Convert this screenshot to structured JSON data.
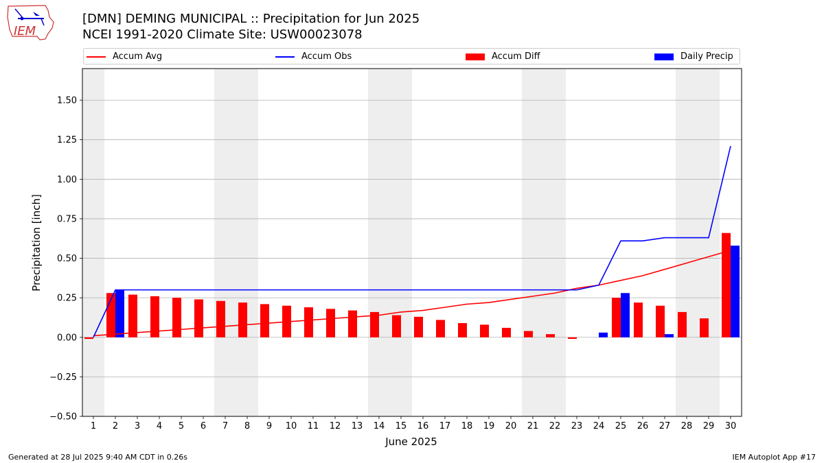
{
  "header": {
    "title_line1": "[DMN] DEMING MUNICIPAL :: Precipitation for Jun 2025",
    "title_line2": "NCEI 1991-2020 Climate Site: USW00023078"
  },
  "logo": {
    "text": "IEM"
  },
  "footer": {
    "left": "Generated at 28 Jul 2025 9:40 AM CDT in 0.26s",
    "right": "IEM Autoplot App #17"
  },
  "colors": {
    "avg": "#ff0000",
    "obs": "#0000ff",
    "diff": "#ff0000",
    "daily": "#0000ff",
    "weekend": "#eeeeee",
    "grid": "#b0b0b0"
  },
  "chart_data": {
    "type": "bar",
    "xlabel": "June 2025",
    "ylabel": "Precipitation [inch]",
    "ylim": [
      -0.5,
      1.7
    ],
    "yticks": [
      -0.5,
      -0.25,
      0.0,
      0.25,
      0.5,
      0.75,
      1.0,
      1.25,
      1.5
    ],
    "ytick_labels": [
      "−0.50",
      "−0.25",
      "0.00",
      "0.25",
      "0.50",
      "0.75",
      "1.00",
      "1.25",
      "1.50"
    ],
    "grid": "horizontal",
    "legend_placement": "top",
    "days": [
      1,
      2,
      3,
      4,
      5,
      6,
      7,
      8,
      9,
      10,
      11,
      12,
      13,
      14,
      15,
      16,
      17,
      18,
      19,
      20,
      21,
      22,
      23,
      24,
      25,
      26,
      27,
      28,
      29,
      30
    ],
    "weekend_days": [
      1,
      7,
      8,
      14,
      15,
      21,
      22,
      28,
      29
    ],
    "series": [
      {
        "name": "Accum Avg",
        "kind": "line",
        "values": [
          0.01,
          0.02,
          0.03,
          0.04,
          0.05,
          0.06,
          0.07,
          0.08,
          0.09,
          0.1,
          0.11,
          0.12,
          0.13,
          0.14,
          0.16,
          0.17,
          0.19,
          0.21,
          0.22,
          0.24,
          0.26,
          0.28,
          0.31,
          0.33,
          0.36,
          0.39,
          0.43,
          0.47,
          0.51,
          0.55
        ]
      },
      {
        "name": "Accum Obs",
        "kind": "line",
        "values": [
          0.0,
          0.3,
          0.3,
          0.3,
          0.3,
          0.3,
          0.3,
          0.3,
          0.3,
          0.3,
          0.3,
          0.3,
          0.3,
          0.3,
          0.3,
          0.3,
          0.3,
          0.3,
          0.3,
          0.3,
          0.3,
          0.3,
          0.3,
          0.33,
          0.61,
          0.61,
          0.63,
          0.63,
          0.63,
          1.21
        ]
      },
      {
        "name": "Accum Diff",
        "kind": "bar",
        "values": [
          -0.01,
          0.28,
          0.27,
          0.26,
          0.25,
          0.24,
          0.23,
          0.22,
          0.21,
          0.2,
          0.19,
          0.18,
          0.17,
          0.16,
          0.14,
          0.13,
          0.11,
          0.09,
          0.08,
          0.06,
          0.04,
          0.02,
          -0.01,
          0.0,
          0.25,
          0.22,
          0.2,
          0.16,
          0.12,
          0.66
        ]
      },
      {
        "name": "Daily Precip",
        "kind": "bar",
        "values": [
          0.0,
          0.3,
          0.0,
          0.0,
          0.0,
          0.0,
          0.0,
          0.0,
          0.0,
          0.0,
          0.0,
          0.0,
          0.0,
          0.0,
          0.0,
          0.0,
          0.0,
          0.0,
          0.0,
          0.0,
          0.0,
          0.0,
          0.0,
          0.03,
          0.28,
          0.0,
          0.02,
          0.0,
          0.0,
          0.58
        ]
      }
    ]
  }
}
